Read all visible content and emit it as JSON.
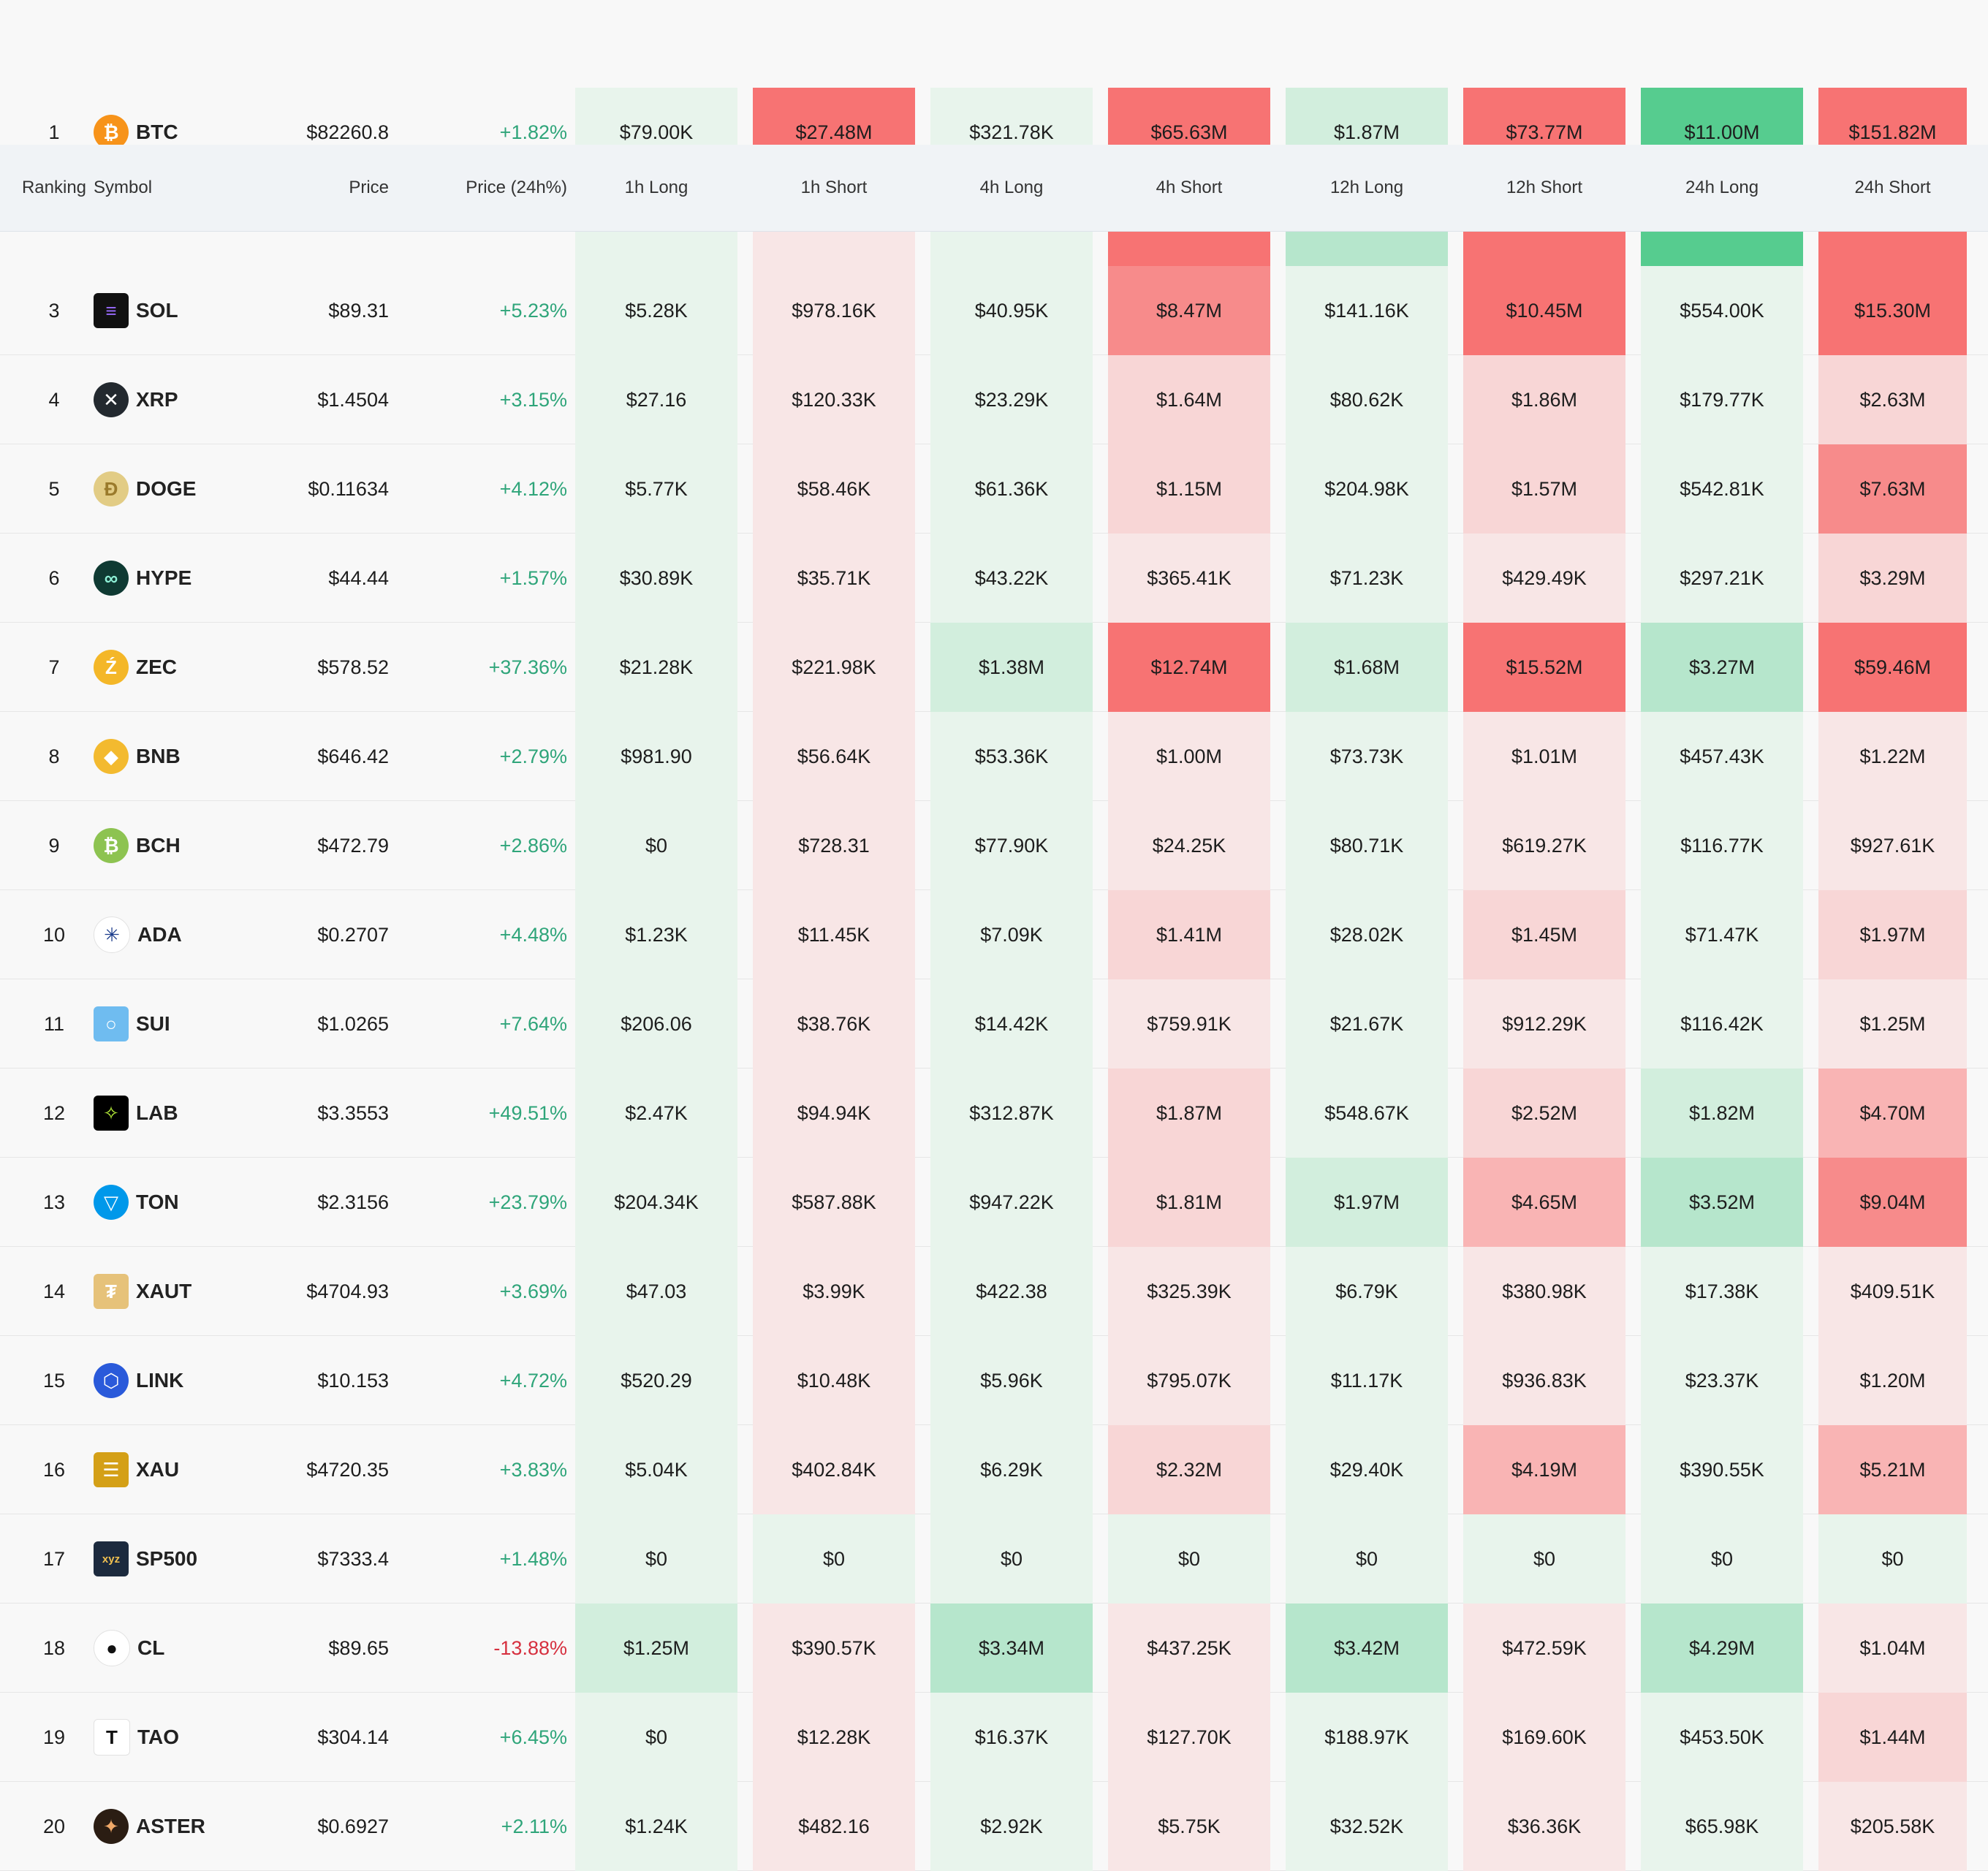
{
  "header": {
    "ranking": "Ranking",
    "symbol": "Symbol",
    "price": "Price",
    "price_change": "Price (24h%)",
    "periods": [
      "1h Long",
      "1h Short",
      "4h Long",
      "4h Short",
      "12h Long",
      "12h Short",
      "24h Long",
      "24h Short"
    ]
  },
  "colors": {
    "long_light": "#e8f4ec",
    "long_mid": "#d2eedd",
    "long_strong": "#b6e6cc",
    "long_max": "#56cc8f",
    "short_light": "#f8e6e6",
    "short_mid": "#f8d6d6",
    "short_strong": "#f9b4b4",
    "short_hot": "#f78b8b",
    "short_max": "#f77373",
    "positive_text": "#2fa57a",
    "negative_text": "#d6303f"
  },
  "rows": [
    {
      "rank": "1",
      "symbol": "BTC",
      "icon": "bitcoin-icon",
      "price": "$82260.8",
      "change": "+1.82%",
      "dir": "pos",
      "values": [
        "$79.00K",
        "$27.48M",
        "$321.78K",
        "$65.63M",
        "$1.87M",
        "$73.77M",
        "$11.00M",
        "$151.82M"
      ],
      "tones": [
        "long_light",
        "short_max",
        "long_light",
        "short_max",
        "long_mid",
        "short_max",
        "long_max",
        "short_max"
      ]
    },
    {
      "rank": "",
      "symbol": "",
      "icon": "",
      "price": "",
      "change": "",
      "dir": "pos",
      "values": [
        "",
        "",
        "",
        "",
        "",
        "",
        "",
        ""
      ],
      "tones": [
        "long_light",
        "short_light",
        "long_light",
        "short_max",
        "long_strong",
        "short_max",
        "long_max",
        "short_max"
      ]
    },
    {
      "rank": "3",
      "symbol": "SOL",
      "icon": "solana-icon",
      "price": "$89.31",
      "change": "+5.23%",
      "dir": "pos",
      "values": [
        "$5.28K",
        "$978.16K",
        "$40.95K",
        "$8.47M",
        "$141.16K",
        "$10.45M",
        "$554.00K",
        "$15.30M"
      ],
      "tones": [
        "long_light",
        "short_light",
        "long_light",
        "short_hot",
        "long_light",
        "short_max",
        "long_light",
        "short_max"
      ]
    },
    {
      "rank": "4",
      "symbol": "XRP",
      "icon": "xrp-icon",
      "price": "$1.4504",
      "change": "+3.15%",
      "dir": "pos",
      "values": [
        "$27.16",
        "$120.33K",
        "$23.29K",
        "$1.64M",
        "$80.62K",
        "$1.86M",
        "$179.77K",
        "$2.63M"
      ],
      "tones": [
        "long_light",
        "short_light",
        "long_light",
        "short_mid",
        "long_light",
        "short_mid",
        "long_light",
        "short_mid"
      ]
    },
    {
      "rank": "5",
      "symbol": "DOGE",
      "icon": "doge-icon",
      "price": "$0.11634",
      "change": "+4.12%",
      "dir": "pos",
      "values": [
        "$5.77K",
        "$58.46K",
        "$61.36K",
        "$1.15M",
        "$204.98K",
        "$1.57M",
        "$542.81K",
        "$7.63M"
      ],
      "tones": [
        "long_light",
        "short_light",
        "long_light",
        "short_mid",
        "long_light",
        "short_mid",
        "long_light",
        "short_hot"
      ]
    },
    {
      "rank": "6",
      "symbol": "HYPE",
      "icon": "hype-icon",
      "price": "$44.44",
      "change": "+1.57%",
      "dir": "pos",
      "values": [
        "$30.89K",
        "$35.71K",
        "$43.22K",
        "$365.41K",
        "$71.23K",
        "$429.49K",
        "$297.21K",
        "$3.29M"
      ],
      "tones": [
        "long_light",
        "short_light",
        "long_light",
        "short_light",
        "long_light",
        "short_light",
        "long_light",
        "short_mid"
      ]
    },
    {
      "rank": "7",
      "symbol": "ZEC",
      "icon": "zcash-icon",
      "price": "$578.52",
      "change": "+37.36%",
      "dir": "pos",
      "values": [
        "$21.28K",
        "$221.98K",
        "$1.38M",
        "$12.74M",
        "$1.68M",
        "$15.52M",
        "$3.27M",
        "$59.46M"
      ],
      "tones": [
        "long_light",
        "short_light",
        "long_mid",
        "short_max",
        "long_mid",
        "short_max",
        "long_strong",
        "short_max"
      ]
    },
    {
      "rank": "8",
      "symbol": "BNB",
      "icon": "bnb-icon",
      "price": "$646.42",
      "change": "+2.79%",
      "dir": "pos",
      "values": [
        "$981.90",
        "$56.64K",
        "$53.36K",
        "$1.00M",
        "$73.73K",
        "$1.01M",
        "$457.43K",
        "$1.22M"
      ],
      "tones": [
        "long_light",
        "short_light",
        "long_light",
        "short_light",
        "long_light",
        "short_light",
        "long_light",
        "short_light"
      ]
    },
    {
      "rank": "9",
      "symbol": "BCH",
      "icon": "bitcoin-cash-icon",
      "price": "$472.79",
      "change": "+2.86%",
      "dir": "pos",
      "values": [
        "$0",
        "$728.31",
        "$77.90K",
        "$24.25K",
        "$80.71K",
        "$619.27K",
        "$116.77K",
        "$927.61K"
      ],
      "tones": [
        "long_light",
        "short_light",
        "long_light",
        "short_light",
        "long_light",
        "short_light",
        "long_light",
        "short_light"
      ]
    },
    {
      "rank": "10",
      "symbol": "ADA",
      "icon": "cardano-icon",
      "price": "$0.2707",
      "change": "+4.48%",
      "dir": "pos",
      "values": [
        "$1.23K",
        "$11.45K",
        "$7.09K",
        "$1.41M",
        "$28.02K",
        "$1.45M",
        "$71.47K",
        "$1.97M"
      ],
      "tones": [
        "long_light",
        "short_light",
        "long_light",
        "short_mid",
        "long_light",
        "short_mid",
        "long_light",
        "short_mid"
      ]
    },
    {
      "rank": "11",
      "symbol": "SUI",
      "icon": "sui-icon",
      "price": "$1.0265",
      "change": "+7.64%",
      "dir": "pos",
      "values": [
        "$206.06",
        "$38.76K",
        "$14.42K",
        "$759.91K",
        "$21.67K",
        "$912.29K",
        "$116.42K",
        "$1.25M"
      ],
      "tones": [
        "long_light",
        "short_light",
        "long_light",
        "short_light",
        "long_light",
        "short_light",
        "long_light",
        "short_light"
      ]
    },
    {
      "rank": "12",
      "symbol": "LAB",
      "icon": "lab-icon",
      "price": "$3.3553",
      "change": "+49.51%",
      "dir": "pos",
      "values": [
        "$2.47K",
        "$94.94K",
        "$312.87K",
        "$1.87M",
        "$548.67K",
        "$2.52M",
        "$1.82M",
        "$4.70M"
      ],
      "tones": [
        "long_light",
        "short_light",
        "long_light",
        "short_mid",
        "long_light",
        "short_mid",
        "long_mid",
        "short_strong"
      ]
    },
    {
      "rank": "13",
      "symbol": "TON",
      "icon": "ton-icon",
      "price": "$2.3156",
      "change": "+23.79%",
      "dir": "pos",
      "values": [
        "$204.34K",
        "$587.88K",
        "$947.22K",
        "$1.81M",
        "$1.97M",
        "$4.65M",
        "$3.52M",
        "$9.04M"
      ],
      "tones": [
        "long_light",
        "short_light",
        "long_light",
        "short_mid",
        "long_mid",
        "short_strong",
        "long_strong",
        "short_hot"
      ]
    },
    {
      "rank": "14",
      "symbol": "XAUT",
      "icon": "tether-gold-icon",
      "price": "$4704.93",
      "change": "+3.69%",
      "dir": "pos",
      "values": [
        "$47.03",
        "$3.99K",
        "$422.38",
        "$325.39K",
        "$6.79K",
        "$380.98K",
        "$17.38K",
        "$409.51K"
      ],
      "tones": [
        "long_light",
        "short_light",
        "long_light",
        "short_light",
        "long_light",
        "short_light",
        "long_light",
        "short_light"
      ]
    },
    {
      "rank": "15",
      "symbol": "LINK",
      "icon": "chainlink-icon",
      "price": "$10.153",
      "change": "+4.72%",
      "dir": "pos",
      "values": [
        "$520.29",
        "$10.48K",
        "$5.96K",
        "$795.07K",
        "$11.17K",
        "$936.83K",
        "$23.37K",
        "$1.20M"
      ],
      "tones": [
        "long_light",
        "short_light",
        "long_light",
        "short_light",
        "long_light",
        "short_light",
        "long_light",
        "short_light"
      ]
    },
    {
      "rank": "16",
      "symbol": "XAU",
      "icon": "gold-bars-icon",
      "price": "$4720.35",
      "change": "+3.83%",
      "dir": "pos",
      "values": [
        "$5.04K",
        "$402.84K",
        "$6.29K",
        "$2.32M",
        "$29.40K",
        "$4.19M",
        "$390.55K",
        "$5.21M"
      ],
      "tones": [
        "long_light",
        "short_light",
        "long_light",
        "short_mid",
        "long_light",
        "short_strong",
        "long_light",
        "short_strong"
      ]
    },
    {
      "rank": "17",
      "symbol": "SP500",
      "icon": "xyz-icon",
      "price": "$7333.4",
      "change": "+1.48%",
      "dir": "pos",
      "values": [
        "$0",
        "$0",
        "$0",
        "$0",
        "$0",
        "$0",
        "$0",
        "$0"
      ],
      "tones": [
        "long_light",
        "long_light",
        "long_light",
        "long_light",
        "long_light",
        "long_light",
        "long_light",
        "long_light"
      ]
    },
    {
      "rank": "18",
      "symbol": "CL",
      "icon": "oil-drop-icon",
      "price": "$89.65",
      "change": "-13.88%",
      "dir": "neg",
      "values": [
        "$1.25M",
        "$390.57K",
        "$3.34M",
        "$437.25K",
        "$3.42M",
        "$472.59K",
        "$4.29M",
        "$1.04M"
      ],
      "tones": [
        "long_mid",
        "short_light",
        "long_strong",
        "short_light",
        "long_strong",
        "short_light",
        "long_strong",
        "short_light"
      ]
    },
    {
      "rank": "19",
      "symbol": "TAO",
      "icon": "bittensor-icon",
      "price": "$304.14",
      "change": "+6.45%",
      "dir": "pos",
      "values": [
        "$0",
        "$12.28K",
        "$16.37K",
        "$127.70K",
        "$188.97K",
        "$169.60K",
        "$453.50K",
        "$1.44M"
      ],
      "tones": [
        "long_light",
        "short_light",
        "long_light",
        "short_light",
        "long_light",
        "short_light",
        "long_light",
        "short_mid"
      ]
    },
    {
      "rank": "20",
      "symbol": "ASTER",
      "icon": "aster-icon",
      "price": "$0.6927",
      "change": "+2.11%",
      "dir": "pos",
      "values": [
        "$1.24K",
        "$482.16",
        "$2.92K",
        "$5.75K",
        "$32.52K",
        "$36.36K",
        "$65.98K",
        "$205.58K"
      ],
      "tones": [
        "long_light",
        "short_light",
        "long_light",
        "short_light",
        "long_light",
        "short_light",
        "long_light",
        "short_light"
      ]
    }
  ]
}
